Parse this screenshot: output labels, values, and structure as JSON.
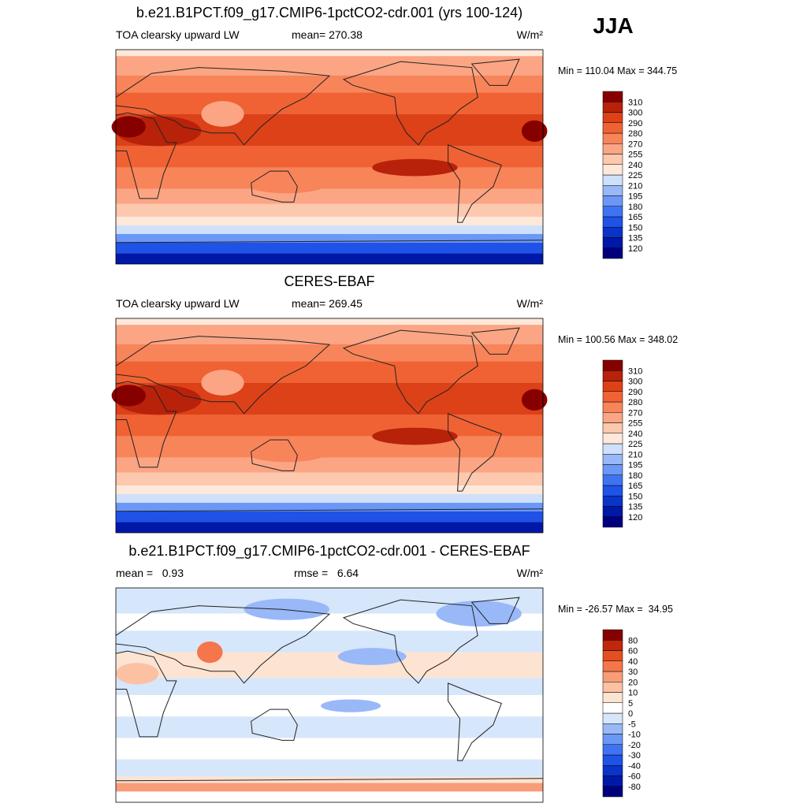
{
  "header": {
    "season": "JJA"
  },
  "panels": [
    {
      "title": "b.e21.B1PCT.f09_g17.CMIP6-1pctCO2-cdr.001 (yrs 100-124)",
      "left": "TOA clearsky upward LW",
      "center": "mean= 270.38",
      "units": "W/m²",
      "range": "Min = 110.04 Max = 344.75",
      "colorbar": {
        "levels": [
          120,
          135,
          150,
          165,
          180,
          195,
          210,
          225,
          240,
          255,
          270,
          280,
          290,
          300,
          310
        ],
        "colors": [
          "#00007f",
          "#0018a8",
          "#0a34c8",
          "#1f52e6",
          "#3f73f2",
          "#6b97f6",
          "#98b8f8",
          "#cfe0fa",
          "#fde8da",
          "#fcc8ae",
          "#fba584",
          "#f8845a",
          "#f06233",
          "#dc4118",
          "#b8220a",
          "#870000"
        ]
      }
    },
    {
      "title": "CERES-EBAF",
      "left": "TOA clearsky upward LW",
      "center": "mean= 269.45",
      "units": "W/m²",
      "range": "Min = 100.56 Max = 348.02",
      "colorbar": {
        "levels": [
          120,
          135,
          150,
          165,
          180,
          195,
          210,
          225,
          240,
          255,
          270,
          280,
          290,
          300,
          310
        ],
        "colors": [
          "#00007f",
          "#0018a8",
          "#0a34c8",
          "#1f52e6",
          "#3f73f2",
          "#6b97f6",
          "#98b8f8",
          "#cfe0fa",
          "#fde8da",
          "#fcc8ae",
          "#fba584",
          "#f8845a",
          "#f06233",
          "#dc4118",
          "#b8220a",
          "#870000"
        ]
      }
    },
    {
      "title": "b.e21.B1PCT.f09_g17.CMIP6-1pctCO2-cdr.001 - CERES-EBAF",
      "left": "mean =   0.93",
      "center": "rmse =   6.64",
      "units": "W/m²",
      "range": "Min = -26.57 Max =  34.95",
      "colorbar": {
        "levels": [
          -80,
          -60,
          -40,
          -30,
          -20,
          -10,
          -5,
          0,
          5,
          10,
          20,
          30,
          40,
          60,
          80
        ],
        "colors": [
          "#00007f",
          "#0018a8",
          "#0a34c8",
          "#1f52e6",
          "#3f73f2",
          "#6b97f6",
          "#98b8f8",
          "#d6e6fb",
          "#ffffff",
          "#fde3d2",
          "#fcc0a3",
          "#f99c78",
          "#f4764a",
          "#e34e22",
          "#bf280c",
          "#870000"
        ]
      }
    }
  ]
}
